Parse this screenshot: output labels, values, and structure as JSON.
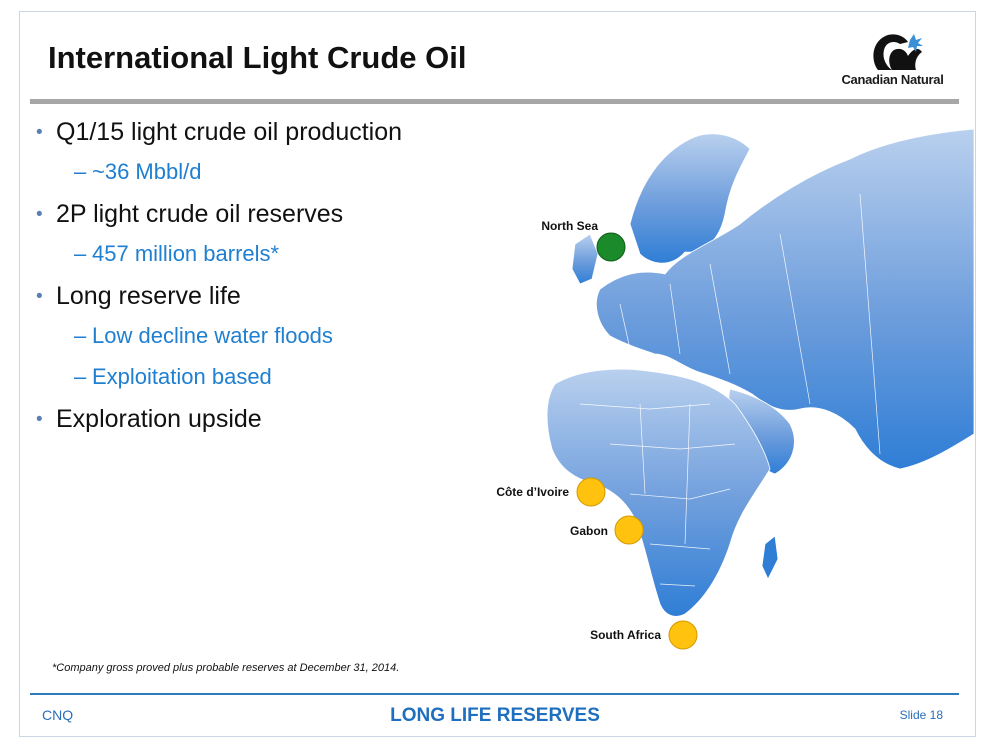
{
  "slide": {
    "title": "International Light Crude Oil",
    "logo_text": "Canadian Natural",
    "bullets": [
      {
        "text": "Q1/15 light crude oil production",
        "sub": [
          "~36 Mbbl/d"
        ]
      },
      {
        "text": "2P light crude oil reserves",
        "sub": [
          "457 million barrels*"
        ]
      },
      {
        "text": "Long reserve life",
        "sub": [
          "Low decline water floods",
          "Exploitation based"
        ]
      },
      {
        "text": "Exploration upside",
        "sub": []
      }
    ],
    "bullet_glyph": "•",
    "sub_glyph": "–",
    "footnote": "*Company gross proved plus probable reserves at December 31, 2014."
  },
  "map": {
    "markers": [
      {
        "label": "North Sea",
        "status": "green"
      },
      {
        "label": "Côte d’Ivoire",
        "status": "yellow"
      },
      {
        "label": "Gabon",
        "status": "yellow"
      },
      {
        "label": "South Africa",
        "status": "yellow"
      }
    ]
  },
  "footer": {
    "left": "CNQ",
    "center": "LONG LIFE RESERVES",
    "right": "Slide 18"
  },
  "colors": {
    "accent": "#1f7fd0",
    "map_land": "#6d9ddc",
    "marker_green": "#1a8a2a",
    "marker_yellow": "#ffc20e"
  }
}
